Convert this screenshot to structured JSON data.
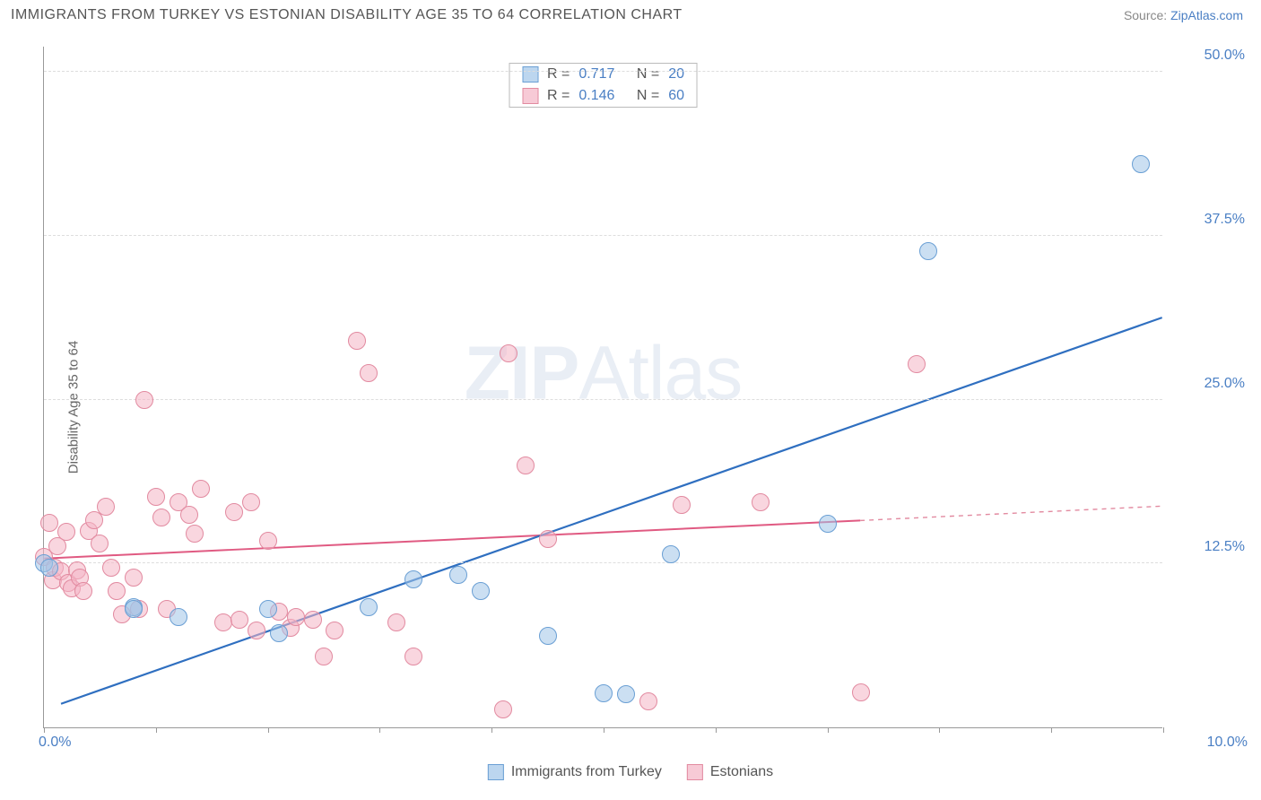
{
  "header": {
    "title": "IMMIGRANTS FROM TURKEY VS ESTONIAN DISABILITY AGE 35 TO 64 CORRELATION CHART",
    "source_prefix": "Source: ",
    "source_link": "ZipAtlas.com"
  },
  "watermark": {
    "bold": "ZIP",
    "rest": "Atlas"
  },
  "chart": {
    "type": "scatter",
    "ylabel": "Disability Age 35 to 64",
    "xlim": [
      0,
      10
    ],
    "ylim": [
      0,
      52
    ],
    "xlim_labels": {
      "min": "0.0%",
      "max": "10.0%"
    },
    "ytick_values": [
      12.5,
      25.0,
      37.5,
      50.0
    ],
    "ytick_labels": [
      "12.5%",
      "25.0%",
      "37.5%",
      "50.0%"
    ],
    "xtick_values": [
      0,
      1,
      2,
      3,
      4,
      5,
      6,
      7,
      8,
      9,
      10
    ],
    "marker_radius": 10,
    "background_color": "#ffffff",
    "grid_color": "#dddddd",
    "axis_color": "#999999",
    "series": {
      "blue": {
        "label": "Immigrants from Turkey",
        "color_fill": "#a0c4e8",
        "color_stroke": "#6a9fd4",
        "R": "0.717",
        "N": "20",
        "reg_line": {
          "x1": 0.15,
          "y1": 1.8,
          "x2": 10.0,
          "y2": 31.3,
          "color": "#2f6fc0",
          "width": 2.2,
          "dash": ""
        },
        "points": [
          [
            0.0,
            12.5
          ],
          [
            0.05,
            12.2
          ],
          [
            0.8,
            9.2
          ],
          [
            0.8,
            9.0
          ],
          [
            1.2,
            8.4
          ],
          [
            2.0,
            9.0
          ],
          [
            2.1,
            7.2
          ],
          [
            2.9,
            9.2
          ],
          [
            3.3,
            11.3
          ],
          [
            3.7,
            11.6
          ],
          [
            3.9,
            10.4
          ],
          [
            4.5,
            7.0
          ],
          [
            5.0,
            2.6
          ],
          [
            5.2,
            2.5
          ],
          [
            5.6,
            13.2
          ],
          [
            7.0,
            15.5
          ],
          [
            7.9,
            36.3
          ],
          [
            9.8,
            43.0
          ]
        ]
      },
      "pink": {
        "label": "Estonians",
        "color_fill": "#f4b4c4",
        "color_stroke": "#e28aa0",
        "R": "0.146",
        "N": "60",
        "reg_line_solid": {
          "x1": 0.0,
          "y1": 12.9,
          "x2": 7.3,
          "y2": 15.8,
          "color": "#e05a82",
          "width": 2.0,
          "dash": ""
        },
        "reg_line_dash": {
          "x1": 7.3,
          "y1": 15.8,
          "x2": 10.0,
          "y2": 16.9,
          "color": "#e28aa0",
          "width": 1.4,
          "dash": "5 5"
        },
        "points": [
          [
            0.0,
            13.0
          ],
          [
            0.05,
            15.6
          ],
          [
            0.08,
            11.2
          ],
          [
            0.1,
            12.2
          ],
          [
            0.12,
            13.8
          ],
          [
            0.15,
            11.9
          ],
          [
            0.2,
            14.9
          ],
          [
            0.22,
            11.0
          ],
          [
            0.25,
            10.6
          ],
          [
            0.3,
            12.0
          ],
          [
            0.32,
            11.4
          ],
          [
            0.35,
            10.4
          ],
          [
            0.4,
            15.0
          ],
          [
            0.45,
            15.8
          ],
          [
            0.5,
            14.0
          ],
          [
            0.55,
            16.8
          ],
          [
            0.6,
            12.2
          ],
          [
            0.65,
            10.4
          ],
          [
            0.7,
            8.6
          ],
          [
            0.8,
            11.4
          ],
          [
            0.85,
            9.0
          ],
          [
            0.9,
            25.0
          ],
          [
            1.0,
            17.6
          ],
          [
            1.05,
            16.0
          ],
          [
            1.1,
            9.0
          ],
          [
            1.2,
            17.2
          ],
          [
            1.3,
            16.2
          ],
          [
            1.35,
            14.8
          ],
          [
            1.4,
            18.2
          ],
          [
            1.6,
            8.0
          ],
          [
            1.7,
            16.4
          ],
          [
            1.75,
            8.2
          ],
          [
            1.85,
            17.2
          ],
          [
            1.9,
            7.4
          ],
          [
            2.0,
            14.2
          ],
          [
            2.1,
            8.8
          ],
          [
            2.2,
            7.6
          ],
          [
            2.25,
            8.4
          ],
          [
            2.4,
            8.2
          ],
          [
            2.5,
            5.4
          ],
          [
            2.6,
            7.4
          ],
          [
            2.8,
            29.5
          ],
          [
            2.9,
            27.0
          ],
          [
            3.15,
            8.0
          ],
          [
            3.3,
            5.4
          ],
          [
            4.1,
            1.4
          ],
          [
            4.15,
            28.5
          ],
          [
            4.3,
            20.0
          ],
          [
            4.5,
            14.4
          ],
          [
            5.4,
            2.0
          ],
          [
            5.7,
            17.0
          ],
          [
            6.4,
            17.2
          ],
          [
            7.3,
            2.7
          ],
          [
            7.8,
            27.7
          ]
        ]
      }
    }
  },
  "legend_top": {
    "rows": [
      {
        "swatch": "blue",
        "r_label": "R =",
        "r_val": "0.717",
        "n_label": "N =",
        "n_val": "20"
      },
      {
        "swatch": "pink",
        "r_label": "R =",
        "r_val": "0.146",
        "n_label": "N =",
        "n_val": "60"
      }
    ]
  }
}
